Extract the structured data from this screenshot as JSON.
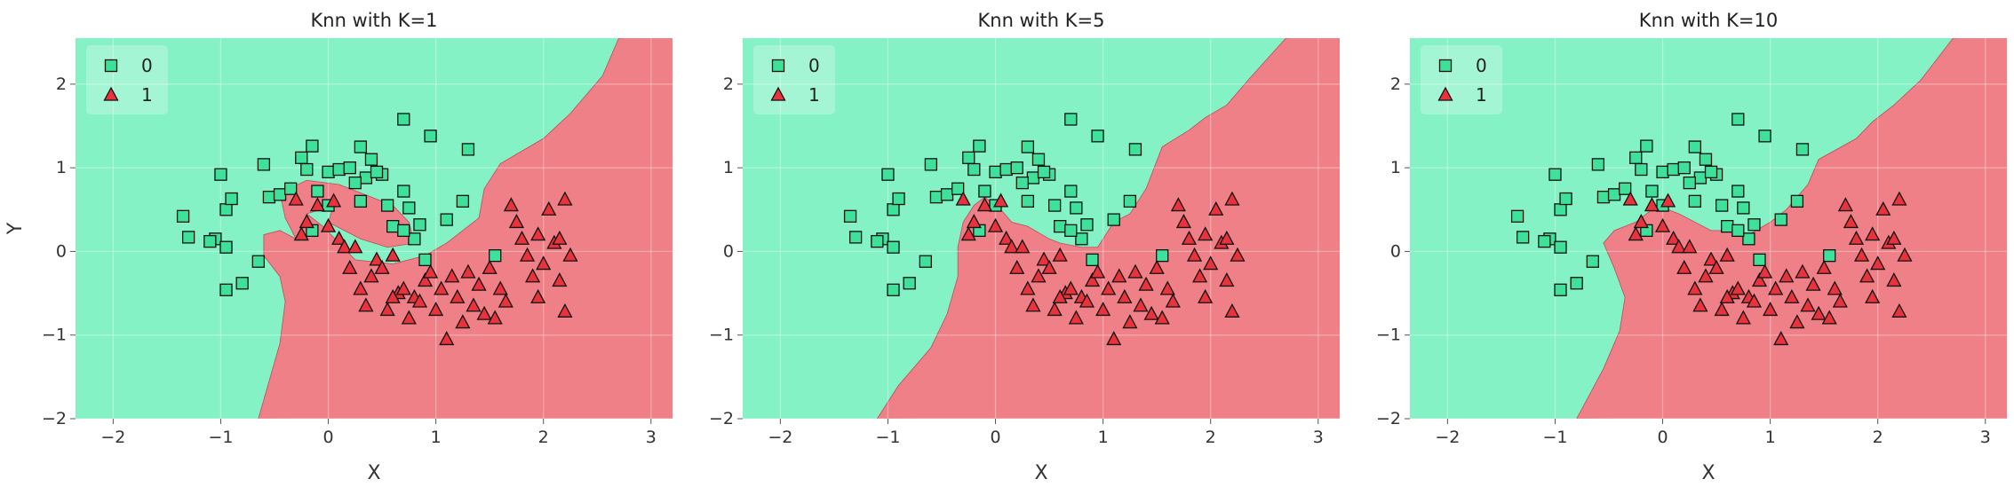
{
  "panels": [
    {
      "title": "Knn with K=1",
      "xlabel": "X",
      "ylabel": "Y",
      "boundary": [
        [
          -0.65,
          -2
        ],
        [
          -0.55,
          -1.55
        ],
        [
          -0.45,
          -1.1
        ],
        [
          -0.4,
          -0.6
        ],
        [
          -0.45,
          -0.3
        ],
        [
          -0.6,
          -0.05
        ],
        [
          -0.6,
          0.2
        ],
        [
          -0.45,
          0.25
        ],
        [
          -0.3,
          0.15
        ],
        [
          -0.4,
          0.4
        ],
        [
          -0.45,
          0.7
        ],
        [
          -0.2,
          0.85
        ],
        [
          0.1,
          0.8
        ],
        [
          0.4,
          0.65
        ],
        [
          0.6,
          0.55
        ],
        [
          0.75,
          0.35
        ],
        [
          0.8,
          0.1
        ],
        [
          0.55,
          0.05
        ],
        [
          0.3,
          0.15
        ],
        [
          0.0,
          0.35
        ],
        [
          0.05,
          0.55
        ],
        [
          -0.2,
          0.45
        ],
        [
          -0.05,
          0.3
        ],
        [
          0.25,
          -0.1
        ],
        [
          0.6,
          -0.15
        ],
        [
          0.9,
          -0.05
        ],
        [
          1.1,
          0.1
        ],
        [
          1.4,
          0.4
        ],
        [
          1.45,
          0.75
        ],
        [
          1.6,
          1.05
        ],
        [
          2.0,
          1.35
        ],
        [
          2.25,
          1.65
        ],
        [
          2.55,
          2.1
        ],
        [
          2.7,
          2.55
        ]
      ],
      "xlim": [
        -2.35,
        3.2
      ],
      "ylim": [
        -2.0,
        2.55
      ],
      "xticks": [
        -2,
        -1,
        0,
        1,
        2,
        3
      ],
      "yticks": [
        -2,
        -1,
        0,
        1,
        2
      ],
      "show_ylabel": true
    },
    {
      "title": "Knn with K=5",
      "xlabel": "X",
      "ylabel": "",
      "boundary": [
        [
          -1.1,
          -2
        ],
        [
          -0.9,
          -1.6
        ],
        [
          -0.6,
          -1.15
        ],
        [
          -0.45,
          -0.75
        ],
        [
          -0.35,
          -0.3
        ],
        [
          -0.35,
          0.05
        ],
        [
          -0.3,
          0.35
        ],
        [
          -0.2,
          0.55
        ],
        [
          -0.1,
          0.65
        ],
        [
          0.05,
          0.5
        ],
        [
          0.15,
          0.35
        ],
        [
          0.3,
          0.3
        ],
        [
          0.5,
          0.15
        ],
        [
          0.6,
          0.1
        ],
        [
          0.8,
          0.05
        ],
        [
          0.95,
          0.05
        ],
        [
          1.1,
          0.35
        ],
        [
          1.25,
          0.45
        ],
        [
          1.4,
          0.75
        ],
        [
          1.55,
          1.25
        ],
        [
          1.8,
          1.45
        ],
        [
          1.95,
          1.6
        ],
        [
          2.15,
          1.75
        ],
        [
          2.35,
          2.05
        ],
        [
          2.7,
          2.55
        ]
      ],
      "xlim": [
        -2.35,
        3.2
      ],
      "ylim": [
        -2.0,
        2.55
      ],
      "xticks": [
        -2,
        -1,
        0,
        1,
        2,
        3
      ],
      "yticks": [
        -2,
        -1,
        0,
        1,
        2
      ],
      "show_ylabel": false
    },
    {
      "title": "Knn with K=10",
      "xlabel": "X",
      "ylabel": "",
      "boundary": [
        [
          -0.8,
          -2
        ],
        [
          -0.55,
          -1.4
        ],
        [
          -0.4,
          -0.95
        ],
        [
          -0.35,
          -0.55
        ],
        [
          -0.45,
          -0.2
        ],
        [
          -0.55,
          0.1
        ],
        [
          -0.45,
          0.25
        ],
        [
          -0.25,
          0.35
        ],
        [
          -0.05,
          0.55
        ],
        [
          0.15,
          0.45
        ],
        [
          0.3,
          0.35
        ],
        [
          0.45,
          0.25
        ],
        [
          0.6,
          0.25
        ],
        [
          0.8,
          0.2
        ],
        [
          1.0,
          0.35
        ],
        [
          1.15,
          0.5
        ],
        [
          1.35,
          0.8
        ],
        [
          1.45,
          1.1
        ],
        [
          1.8,
          1.35
        ],
        [
          1.95,
          1.55
        ],
        [
          2.15,
          1.75
        ],
        [
          2.4,
          2.05
        ],
        [
          2.7,
          2.55
        ]
      ],
      "xlim": [
        -2.35,
        3.2
      ],
      "ylim": [
        -2.0,
        2.55
      ],
      "xticks": [
        -2,
        -1,
        0,
        1,
        2,
        3
      ],
      "yticks": [
        -2,
        -1,
        0,
        1,
        2
      ],
      "show_ylabel": false
    }
  ],
  "legend": {
    "items": [
      {
        "label": "0",
        "marker": "square",
        "color": "#3ee09a"
      },
      {
        "label": "1",
        "marker": "triangle",
        "color": "#e8323c"
      }
    ],
    "placement": "upper-left"
  },
  "colors": {
    "region_0": "#84f2c4",
    "region_1": "#f08088",
    "point_0": "#3ee09a",
    "point_1": "#e8323c",
    "edge": "#111111",
    "grid": "#ffffff"
  },
  "chart_data": {
    "type": "scatter",
    "class_0": [
      [
        -1.35,
        0.42
      ],
      [
        -1.3,
        0.17
      ],
      [
        -1.05,
        0.15
      ],
      [
        -1.0,
        0.92
      ],
      [
        -0.95,
        0.5
      ],
      [
        -0.9,
        0.63
      ],
      [
        -1.1,
        0.12
      ],
      [
        -0.95,
        0.05
      ],
      [
        -0.8,
        -0.38
      ],
      [
        -0.95,
        -0.46
      ],
      [
        -0.65,
        -0.12
      ],
      [
        -0.55,
        0.65
      ],
      [
        -0.45,
        0.68
      ],
      [
        -0.6,
        1.04
      ],
      [
        -0.35,
        0.75
      ],
      [
        -0.25,
        1.12
      ],
      [
        -0.2,
        0.98
      ],
      [
        -0.15,
        1.26
      ],
      [
        -0.1,
        0.72
      ],
      [
        0.0,
        0.95
      ],
      [
        0.1,
        0.98
      ],
      [
        0.2,
        1.0
      ],
      [
        0.3,
        1.25
      ],
      [
        0.35,
        0.88
      ],
      [
        0.4,
        1.1
      ],
      [
        0.5,
        0.92
      ],
      [
        0.55,
        0.55
      ],
      [
        0.6,
        0.3
      ],
      [
        0.7,
        0.72
      ],
      [
        0.75,
        0.52
      ],
      [
        0.8,
        0.15
      ],
      [
        0.7,
        1.58
      ],
      [
        0.95,
        1.38
      ],
      [
        0.85,
        0.32
      ],
      [
        0.9,
        -0.1
      ],
      [
        1.1,
        0.38
      ],
      [
        1.25,
        0.6
      ],
      [
        1.3,
        1.22
      ],
      [
        1.55,
        -0.05
      ],
      [
        0.25,
        0.82
      ],
      [
        0.45,
        0.95
      ],
      [
        0.0,
        0.55
      ],
      [
        -0.15,
        0.25
      ],
      [
        0.3,
        0.6
      ],
      [
        0.7,
        0.25
      ]
    ],
    "class_1": [
      [
        -0.3,
        0.62
      ],
      [
        -0.25,
        0.2
      ],
      [
        -0.2,
        0.35
      ],
      [
        -0.1,
        0.55
      ],
      [
        0.0,
        0.3
      ],
      [
        0.05,
        0.6
      ],
      [
        0.1,
        0.15
      ],
      [
        0.15,
        0.05
      ],
      [
        0.2,
        -0.2
      ],
      [
        0.25,
        0.05
      ],
      [
        0.3,
        -0.45
      ],
      [
        0.35,
        -0.65
      ],
      [
        0.4,
        -0.3
      ],
      [
        0.45,
        -0.1
      ],
      [
        0.5,
        -0.2
      ],
      [
        0.55,
        -0.7
      ],
      [
        0.6,
        -0.05
      ],
      [
        0.65,
        -0.5
      ],
      [
        0.7,
        -0.45
      ],
      [
        0.75,
        -0.8
      ],
      [
        0.8,
        -0.55
      ],
      [
        0.85,
        -0.6
      ],
      [
        0.9,
        -0.35
      ],
      [
        1.0,
        -0.7
      ],
      [
        1.05,
        -0.45
      ],
      [
        1.1,
        -1.05
      ],
      [
        1.15,
        -0.3
      ],
      [
        1.2,
        -0.55
      ],
      [
        1.25,
        -0.85
      ],
      [
        1.3,
        -0.25
      ],
      [
        1.35,
        -0.65
      ],
      [
        1.4,
        -0.4
      ],
      [
        1.45,
        -0.75
      ],
      [
        1.5,
        -0.2
      ],
      [
        1.55,
        -0.8
      ],
      [
        1.6,
        -0.45
      ],
      [
        1.65,
        -0.6
      ],
      [
        1.7,
        0.55
      ],
      [
        1.75,
        0.35
      ],
      [
        1.8,
        0.15
      ],
      [
        1.85,
        -0.05
      ],
      [
        1.9,
        -0.3
      ],
      [
        1.95,
        0.2
      ],
      [
        2.0,
        -0.15
      ],
      [
        2.05,
        0.5
      ],
      [
        2.1,
        0.1
      ],
      [
        2.15,
        -0.35
      ],
      [
        2.2,
        0.62
      ],
      [
        2.2,
        -0.72
      ],
      [
        2.25,
        -0.05
      ],
      [
        2.15,
        0.15
      ],
      [
        1.95,
        -0.55
      ],
      [
        0.95,
        -0.25
      ],
      [
        0.6,
        -0.55
      ]
    ]
  }
}
